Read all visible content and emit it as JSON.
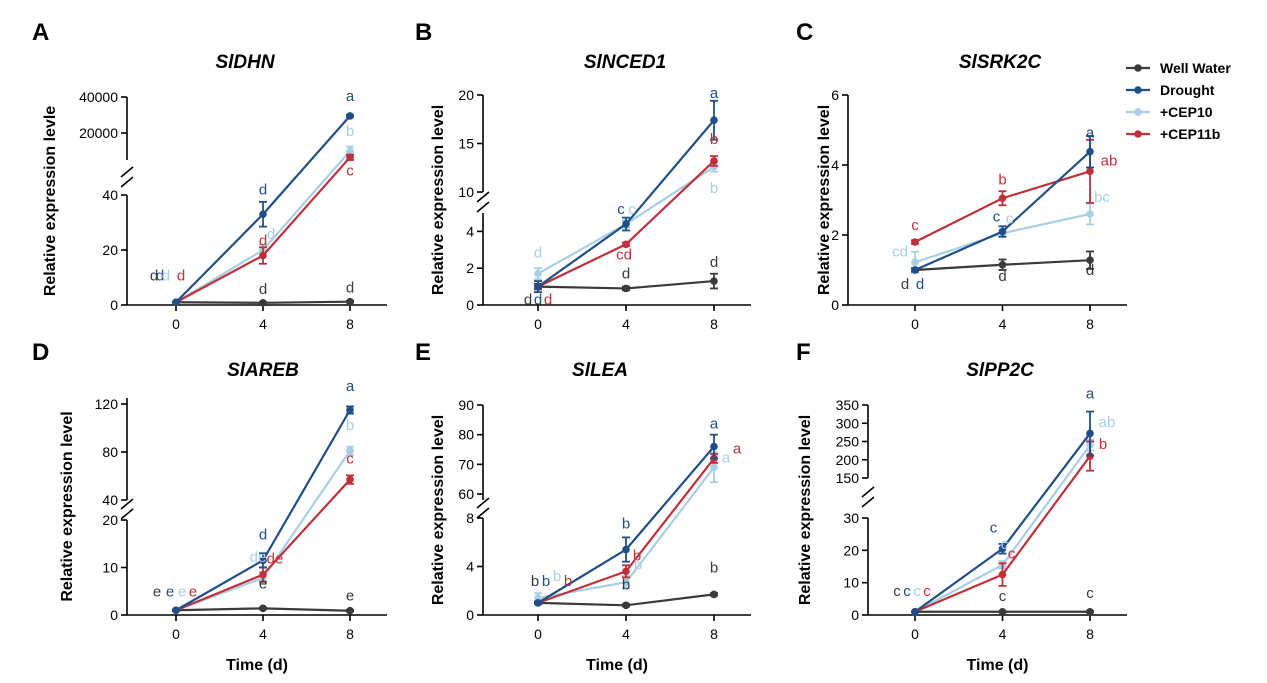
{
  "legend": {
    "items": [
      {
        "name": "Well Water",
        "color": "#3a3a3a"
      },
      {
        "name": "Drought",
        "color": "#1f4e89"
      },
      {
        "name": "+CEP10",
        "color": "#a8cfe4"
      },
      {
        "name": "+CEP11b",
        "color": "#c0303a"
      }
    ]
  },
  "x_axis_label": "Time (d)",
  "chart_data": [
    {
      "type": "line",
      "panel": "A",
      "title": "SlDHN",
      "ylabel": "Relative expression levle",
      "x": [
        0,
        4,
        8
      ],
      "xticks": [
        "0",
        "4",
        "8"
      ],
      "broken_y_axis": true,
      "lower_ylim": [
        0,
        40
      ],
      "lower_yticks": [
        "0",
        "20",
        "40"
      ],
      "upper_ylim": [
        5000,
        40000
      ],
      "upper_yticks": [
        "20000",
        "40000"
      ],
      "series": [
        {
          "name": "Well Water",
          "values": [
            1,
            0.8,
            1.2
          ],
          "errors": [
            0.1,
            0.3,
            0.3
          ],
          "letters": [
            "d",
            "d",
            "d"
          ]
        },
        {
          "name": "Drought",
          "values": [
            1,
            33,
            29500
          ],
          "errors": [
            0.1,
            4.5,
            500
          ],
          "letters": [
            "d",
            "d",
            "a"
          ]
        },
        {
          "name": "+CEP10",
          "values": [
            1,
            20,
            10000
          ],
          "errors": [
            0.1,
            2,
            2500
          ],
          "letters": [
            "d",
            "d",
            "b"
          ]
        },
        {
          "name": "+CEP11b",
          "values": [
            1,
            18,
            6500
          ],
          "errors": [
            0.1,
            3,
            1500
          ],
          "letters": [
            "d",
            "d",
            "c"
          ]
        }
      ]
    },
    {
      "type": "line",
      "panel": "B",
      "title": "SlNCED1",
      "ylabel": "Relative expression level",
      "x": [
        0,
        4,
        8
      ],
      "xticks": [
        "0",
        "4",
        "8"
      ],
      "broken_y_axis": true,
      "lower_ylim": [
        0,
        5
      ],
      "lower_yticks": [
        "0",
        "2",
        "4"
      ],
      "upper_ylim": [
        10,
        20
      ],
      "upper_yticks": [
        "10",
        "15",
        "20"
      ],
      "series": [
        {
          "name": "Well Water",
          "values": [
            1,
            0.9,
            1.3
          ],
          "errors": [
            0.15,
            0.1,
            0.4
          ],
          "letters": [
            "d",
            "d",
            "d"
          ]
        },
        {
          "name": "Drought",
          "values": [
            1,
            4.4,
            17.4
          ],
          "errors": [
            0.3,
            0.35,
            2.0
          ],
          "letters": [
            "d",
            "c",
            "a"
          ]
        },
        {
          "name": "+CEP10",
          "values": [
            1.7,
            4.4,
            12.6
          ],
          "errors": [
            0.3,
            0.2,
            0.5
          ],
          "letters": [
            "d",
            "c",
            "b"
          ]
        },
        {
          "name": "+CEP11b",
          "values": [
            1,
            3.3,
            13.2
          ],
          "errors": [
            0.1,
            0.1,
            0.5
          ],
          "letters": [
            "d",
            "cd",
            "b"
          ]
        }
      ]
    },
    {
      "type": "line",
      "panel": "C",
      "title": "SlSRK2C",
      "ylabel": "Relative expression level",
      "x": [
        0,
        4,
        8
      ],
      "xticks": [
        "0",
        "4",
        "8"
      ],
      "broken_y_axis": false,
      "ylim": [
        0,
        6
      ],
      "yticks": [
        "0",
        "2",
        "4",
        "6"
      ],
      "series": [
        {
          "name": "Well Water",
          "values": [
            1,
            1.15,
            1.28
          ],
          "errors": [
            0.05,
            0.15,
            0.25
          ],
          "letters": [
            "d",
            "d",
            "d"
          ]
        },
        {
          "name": "Drought",
          "values": [
            1,
            2.1,
            4.38
          ],
          "errors": [
            0.05,
            0.15,
            0.45
          ],
          "letters": [
            "d",
            "c",
            "a"
          ]
        },
        {
          "name": "+CEP10",
          "values": [
            1.22,
            2.05,
            2.6
          ],
          "errors": [
            0.3,
            0.1,
            0.3
          ],
          "letters": [
            "cd",
            "c",
            "bc"
          ]
        },
        {
          "name": "+CEP11b",
          "values": [
            1.8,
            3.05,
            3.82
          ],
          "errors": [
            0.05,
            0.2,
            0.9
          ],
          "letters": [
            "c",
            "b",
            "ab"
          ]
        }
      ]
    },
    {
      "type": "line",
      "panel": "D",
      "title": "SlAREB",
      "ylabel": "Relative expression level",
      "x": [
        0,
        4,
        8
      ],
      "xticks": [
        "0",
        "4",
        "8"
      ],
      "broken_y_axis": true,
      "lower_ylim": [
        0,
        20
      ],
      "lower_yticks": [
        "0",
        "10",
        "20"
      ],
      "upper_ylim": [
        40,
        125
      ],
      "upper_yticks": [
        "40",
        "80",
        "120"
      ],
      "series": [
        {
          "name": "Well Water",
          "values": [
            1,
            1.4,
            0.9
          ],
          "errors": [
            0.1,
            0.2,
            0.2
          ],
          "letters": [
            "e",
            "e",
            "e"
          ]
        },
        {
          "name": "Drought",
          "values": [
            1,
            11.5,
            115
          ],
          "errors": [
            0.1,
            1.5,
            3
          ],
          "letters": [
            "e",
            "d",
            "a"
          ]
        },
        {
          "name": "+CEP10",
          "values": [
            1,
            7.8,
            81
          ],
          "errors": [
            0.1,
            1.2,
            3.5
          ],
          "letters": [
            "e",
            "de",
            "b"
          ]
        },
        {
          "name": "+CEP11b",
          "values": [
            1,
            8.5,
            57
          ],
          "errors": [
            0.1,
            1.5,
            3.5
          ],
          "letters": [
            "e",
            "de",
            "c"
          ]
        }
      ]
    },
    {
      "type": "line",
      "panel": "E",
      "title": "SlLEA",
      "ylabel": "Relative expression level",
      "x": [
        0,
        4,
        8
      ],
      "xticks": [
        "0",
        "4",
        "8"
      ],
      "broken_y_axis": true,
      "lower_ylim": [
        0,
        8
      ],
      "lower_yticks": [
        "0",
        "4",
        "8"
      ],
      "upper_ylim": [
        58,
        90
      ],
      "upper_yticks": [
        "60",
        "70",
        "80",
        "90"
      ],
      "series": [
        {
          "name": "Well Water",
          "values": [
            1,
            0.8,
            1.7
          ],
          "errors": [
            0.1,
            0.1,
            0.1
          ],
          "letters": [
            "b",
            "b",
            "b"
          ]
        },
        {
          "name": "Drought",
          "values": [
            1,
            5.4,
            76
          ],
          "errors": [
            0.1,
            1.0,
            4
          ],
          "letters": [
            "b",
            "b",
            "a"
          ]
        },
        {
          "name": "+CEP10",
          "values": [
            1.4,
            2.7,
            69
          ],
          "errors": [
            0.4,
            0.5,
            5
          ],
          "letters": [
            "b",
            "b",
            "a"
          ]
        },
        {
          "name": "+CEP11b",
          "values": [
            1,
            3.6,
            72
          ],
          "errors": [
            0.1,
            0.5,
            1.5
          ],
          "letters": [
            "b",
            "b",
            "a"
          ]
        }
      ]
    },
    {
      "type": "line",
      "panel": "F",
      "title": "SlPP2C",
      "ylabel": "Relative expression level",
      "x": [
        0,
        4,
        8
      ],
      "xticks": [
        "0",
        "4",
        "8"
      ],
      "broken_y_axis": true,
      "lower_ylim": [
        0,
        30
      ],
      "lower_yticks": [
        "0",
        "10",
        "20",
        "30"
      ],
      "upper_ylim": [
        150,
        350
      ],
      "upper_yticks": [
        "150",
        "200",
        "250",
        "300",
        "350"
      ],
      "series": [
        {
          "name": "Well Water",
          "values": [
            1,
            1,
            1
          ],
          "errors": [
            0.1,
            0.2,
            0.2
          ],
          "letters": [
            "c",
            "c",
            "c"
          ]
        },
        {
          "name": "Drought",
          "values": [
            1,
            20.5,
            272
          ],
          "errors": [
            0.1,
            1.5,
            60
          ],
          "letters": [
            "c",
            "c",
            "a"
          ]
        },
        {
          "name": "+CEP10",
          "values": [
            1,
            15.5,
            240
          ],
          "errors": [
            0.1,
            1.2,
            15
          ],
          "letters": [
            "c",
            "c",
            "ab"
          ]
        },
        {
          "name": "+CEP11b",
          "values": [
            1,
            12.5,
            210
          ],
          "errors": [
            0.1,
            3.5,
            40
          ],
          "letters": [
            "c",
            "c",
            "b"
          ]
        }
      ]
    }
  ]
}
